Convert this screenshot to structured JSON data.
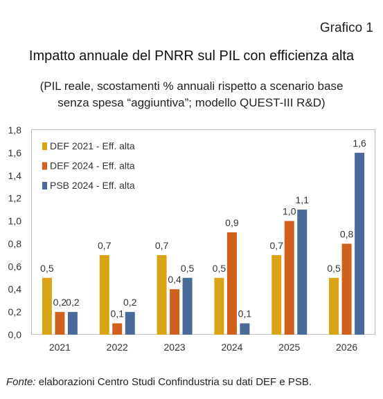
{
  "header": {
    "label": "Grafico 1",
    "title": "Impatto annuale del PNRR sul PIL con efficienza alta",
    "subtitle_line1": "(PIL reale, scostamenti % annuali rispetto a scenario base",
    "subtitle_line2": "senza spesa “aggiuntiva”; modello QUEST-III R&D)"
  },
  "source": {
    "lead": "Fonte:",
    "text": " elaborazioni Centro Studi Confindustria su dati DEF e PSB."
  },
  "chart_data": {
    "type": "bar",
    "categories": [
      "2021",
      "2022",
      "2023",
      "2024",
      "2025",
      "2026"
    ],
    "series": [
      {
        "name": "DEF 2021 - Eff. alta",
        "color": "#d9a413",
        "values": [
          0.5,
          0.7,
          0.7,
          0.5,
          0.7,
          0.5
        ],
        "labels": [
          "0,5",
          "0,7",
          "0,7",
          "0,5",
          "0,7",
          "0,5"
        ]
      },
      {
        "name": "DEF 2024 - Eff. alta",
        "color": "#d0601c",
        "values": [
          0.2,
          0.1,
          0.4,
          0.9,
          1.0,
          0.8
        ],
        "labels": [
          "0,2",
          "0,1",
          "0,4",
          "0,9",
          "1,0",
          "0,8"
        ]
      },
      {
        "name": "PSB 2024 - Eff. alta",
        "color": "#4a6a97",
        "values": [
          0.2,
          0.2,
          0.5,
          0.1,
          1.1,
          1.6
        ],
        "labels": [
          "0,2",
          "0,2",
          "0,5",
          "0,1",
          "1,1",
          "1,6"
        ]
      }
    ],
    "ylim": [
      0,
      1.8
    ],
    "yticks": [
      0,
      0.2,
      0.4,
      0.6,
      0.8,
      1.0,
      1.2,
      1.4,
      1.6,
      1.8
    ],
    "ytick_labels": [
      "0,0",
      "0,2",
      "0,4",
      "0,6",
      "0,8",
      "1,0",
      "1,2",
      "1,4",
      "1,6",
      "1,8"
    ],
    "grid": false,
    "legend_position": "top-left"
  }
}
